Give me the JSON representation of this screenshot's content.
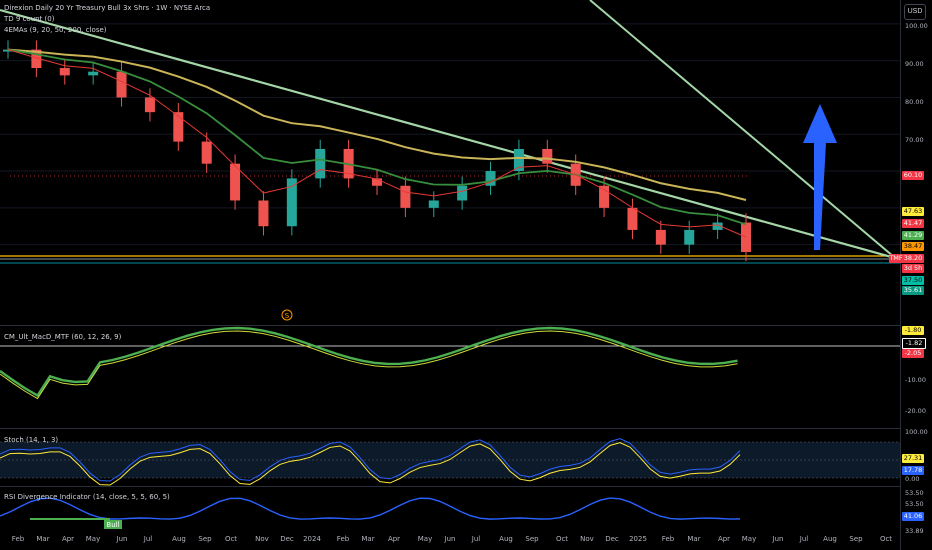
{
  "header": {
    "title": "Direxion Daily 20 Yr Treasury Bull 3x Shrs · 1W · NYSE Arca",
    "indicator_1": "TD 9 count (0)",
    "indicator_2": "4EMAs (9, 20, 50, 200, close)",
    "currency": "USD"
  },
  "panes": {
    "macd_label": "CM_Ult_MacD_MTF (60, 12, 26, 9)",
    "stoch_label": "Stoch (14, 1, 3)",
    "rsi_label": "RSI Divergence Indicator (14, close, 5, 5, 60, 5)",
    "rsi_bull_tag": "Bull",
    "event_marker": "S"
  },
  "price_axis": {
    "ticks": [
      "100.00",
      "90.00",
      "80.00",
      "70.00"
    ],
    "badges": [
      {
        "label": "60.10",
        "color": "#f23645"
      },
      {
        "label": "47.63",
        "color": "#ffeb3b",
        "text": "#000"
      },
      {
        "label": "41.47",
        "color": "#f23645"
      },
      {
        "label": "41.29",
        "color": "#4caf50"
      },
      {
        "label": "38.47",
        "color": "#ff9800",
        "text": "#000"
      },
      {
        "label": "38.20",
        "color": "#f23645"
      },
      {
        "label": "3d 5h",
        "color": "#f23645"
      },
      {
        "label": "37.50",
        "color": "#00bfa5",
        "text": "#000"
      },
      {
        "label": "35.61",
        "color": "#089981"
      }
    ],
    "symbol_tag": "TMF"
  },
  "macd_axis": {
    "ticks": [
      "-10.00",
      "-20.00"
    ],
    "badges": [
      {
        "label": "-1.80",
        "color": "#ffeb3b",
        "text": "#000"
      },
      {
        "label": "-1.82",
        "color": "#000",
        "border": "#fff"
      },
      {
        "label": "-2.05",
        "color": "#f23645"
      }
    ]
  },
  "stoch_axis": {
    "ticks": [
      "100.00",
      "0.00"
    ],
    "badges": [
      {
        "label": "27.31",
        "color": "#ffeb3b",
        "text": "#000"
      },
      {
        "label": "17.78",
        "color": "#2962ff"
      }
    ]
  },
  "rsi_axis": {
    "ticks": [
      "53.50",
      "53.50",
      "33.89"
    ],
    "badges": [
      {
        "label": "41.06",
        "color": "#2962ff"
      }
    ]
  },
  "time_axis": [
    "Feb",
    "Mar",
    "Apr",
    "May",
    "Jun",
    "Jul",
    "Aug",
    "Sep",
    "Oct",
    "Nov",
    "Dec",
    "2024",
    "Feb",
    "Mar",
    "Apr",
    "May",
    "Jun",
    "Jul",
    "Aug",
    "Sep",
    "Oct",
    "Nov",
    "Dec",
    "2025",
    "Feb",
    "Mar",
    "Apr",
    "May",
    "Jun",
    "Jul",
    "Aug",
    "Sep",
    "Oct"
  ],
  "chart_data": {
    "type": "line",
    "title": "Direxion Daily 20 Yr Treasury Bull 3x Shrs · 1W · NYSE Arca",
    "x": [
      "Feb",
      "Mar",
      "Apr",
      "May",
      "Jun",
      "Jul",
      "Aug",
      "Sep",
      "Oct",
      "Nov",
      "Dec",
      "2024",
      "Feb",
      "Mar",
      "Apr",
      "May",
      "Jun",
      "Jul",
      "Aug",
      "Sep",
      "Oct",
      "Nov",
      "Dec",
      "2025",
      "Feb",
      "Mar",
      "Apr"
    ],
    "series": [
      {
        "name": "",
        "values": [
          93,
          88,
          86,
          87,
          80,
          76,
          68,
          62,
          52,
          45,
          58,
          66,
          58,
          56,
          50,
          52,
          56,
          60,
          66,
          62,
          56,
          50,
          44,
          40,
          44,
          46,
          38
        ]
      }
    ],
    "ylim": [
      30,
      105
    ],
    "grid": true
  }
}
